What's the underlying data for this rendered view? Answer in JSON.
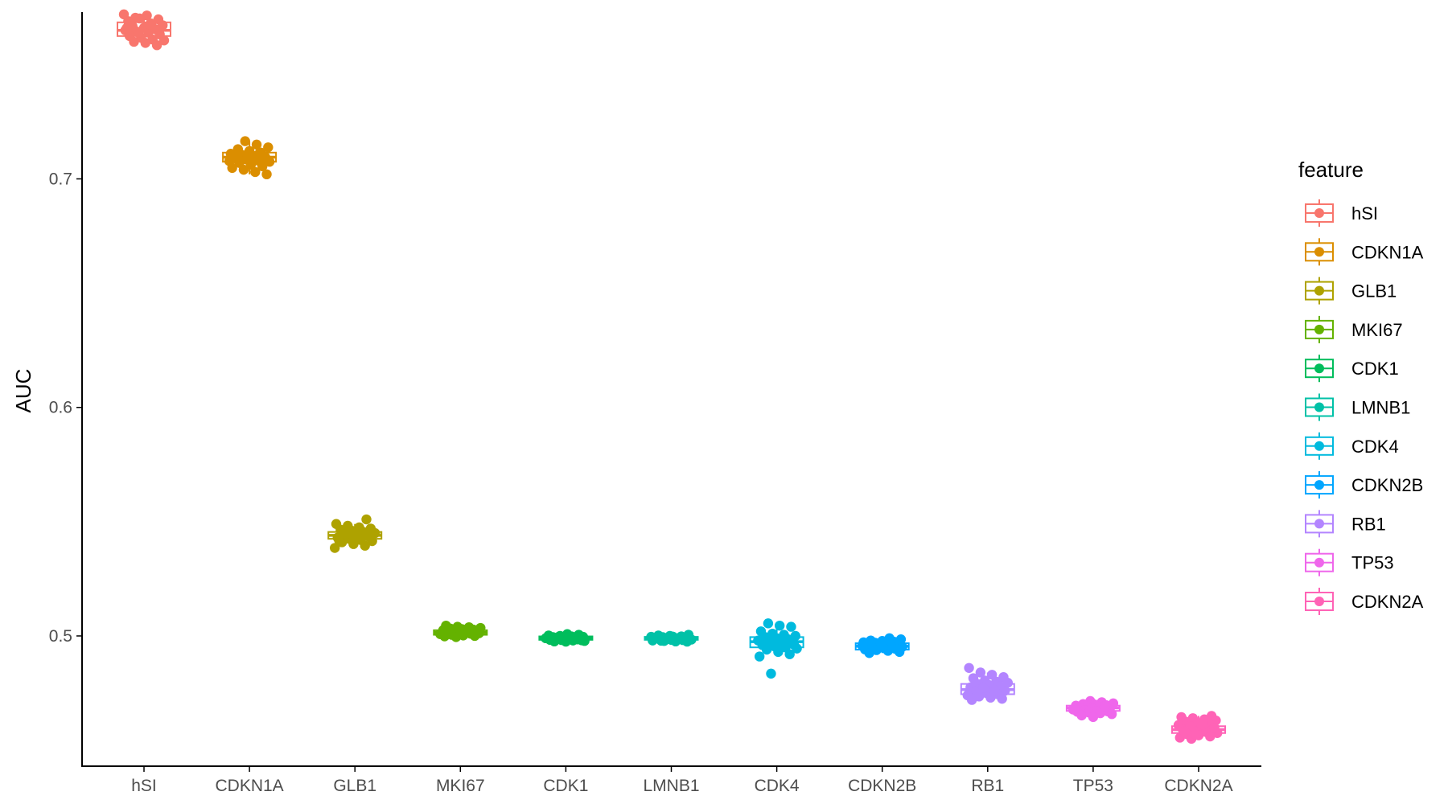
{
  "chart_data": {
    "type": "box",
    "ylabel": "AUC",
    "xlabel": "",
    "ylim": [
      0.443,
      0.773
    ],
    "yticks": [
      "0.5",
      "0.6",
      "0.7"
    ],
    "grid": false,
    "legend": {
      "title": "feature",
      "position": "right"
    },
    "categories": [
      "hSI",
      "CDKN1A",
      "GLB1",
      "MKI67",
      "CDK1",
      "LMNB1",
      "CDK4",
      "CDKN2B",
      "RB1",
      "TP53",
      "CDKN2A"
    ],
    "series": [
      {
        "name": "hSI",
        "color": "#F8766D",
        "median": 0.765,
        "q1": 0.7625,
        "q3": 0.7685,
        "points": [
          0.772,
          0.7705,
          0.7715,
          0.7698,
          0.769,
          0.7702,
          0.768,
          0.7672,
          0.7668,
          0.7661,
          0.7655,
          0.765,
          0.7645,
          0.764,
          0.7632,
          0.7625,
          0.7618,
          0.761,
          0.7606,
          0.76,
          0.7595,
          0.7585,
          0.766,
          0.764,
          0.7675
        ]
      },
      {
        "name": "CDKN1A",
        "color": "#DB8E00",
        "median": 0.7095,
        "q1": 0.7075,
        "q3": 0.7115,
        "points": [
          0.7165,
          0.715,
          0.7138,
          0.713,
          0.7122,
          0.7115,
          0.711,
          0.7105,
          0.71,
          0.7096,
          0.709,
          0.7085,
          0.708,
          0.7075,
          0.707,
          0.7062,
          0.7055,
          0.7048,
          0.704,
          0.703,
          0.702,
          0.71,
          0.7088,
          0.7112,
          0.7078
        ]
      },
      {
        "name": "GLB1",
        "color": "#AEA200",
        "median": 0.544,
        "q1": 0.5425,
        "q3": 0.5455,
        "points": [
          0.551,
          0.549,
          0.5482,
          0.5475,
          0.547,
          0.5465,
          0.546,
          0.5455,
          0.545,
          0.5445,
          0.544,
          0.5436,
          0.543,
          0.5425,
          0.542,
          0.5415,
          0.541,
          0.5402,
          0.5395,
          0.5385,
          0.5445,
          0.5432,
          0.5458,
          0.5418,
          0.5448
        ]
      },
      {
        "name": "MKI67",
        "color": "#64B200",
        "median": 0.5015,
        "q1": 0.5005,
        "q3": 0.5025,
        "points": [
          0.5045,
          0.504,
          0.5038,
          0.5035,
          0.5032,
          0.503,
          0.5028,
          0.5025,
          0.5022,
          0.502,
          0.5018,
          0.5015,
          0.5012,
          0.501,
          0.5008,
          0.5005,
          0.5002,
          0.5,
          0.4998,
          0.4995,
          0.502,
          0.5012,
          0.503,
          0.5006,
          0.5016
        ]
      },
      {
        "name": "CDK1",
        "color": "#00BD5C",
        "median": 0.499,
        "q1": 0.4983,
        "q3": 0.4998,
        "points": [
          0.5008,
          0.5005,
          0.5002,
          0.5,
          0.4998,
          0.4996,
          0.4995,
          0.4993,
          0.4992,
          0.499,
          0.4988,
          0.4987,
          0.4985,
          0.4983,
          0.4982,
          0.498,
          0.4978,
          0.4976,
          0.4975,
          0.4985,
          0.4992,
          0.4996,
          0.4989,
          0.4981,
          0.4994
        ]
      },
      {
        "name": "LMNB1",
        "color": "#00C1A7",
        "median": 0.499,
        "q1": 0.4983,
        "q3": 0.4996,
        "points": [
          0.5005,
          0.5002,
          0.5,
          0.4998,
          0.4996,
          0.4995,
          0.4993,
          0.4992,
          0.499,
          0.4989,
          0.4988,
          0.4986,
          0.4985,
          0.4983,
          0.4982,
          0.498,
          0.4978,
          0.4976,
          0.4975,
          0.4994,
          0.4987,
          0.4991,
          0.4984,
          0.4979,
          0.4997
        ]
      },
      {
        "name": "CDK4",
        "color": "#00BADE",
        "median": 0.4975,
        "q1": 0.495,
        "q3": 0.4995,
        "points": [
          0.5055,
          0.5045,
          0.504,
          0.502,
          0.501,
          0.5005,
          0.5,
          0.4995,
          0.499,
          0.4985,
          0.498,
          0.4975,
          0.497,
          0.4965,
          0.496,
          0.4955,
          0.495,
          0.4945,
          0.494,
          0.493,
          0.492,
          0.491,
          0.4835,
          0.4985,
          0.4962
        ]
      },
      {
        "name": "CDKN2B",
        "color": "#00A6FF",
        "median": 0.4955,
        "q1": 0.494,
        "q3": 0.4968,
        "points": [
          0.499,
          0.4985,
          0.498,
          0.4978,
          0.4975,
          0.4972,
          0.497,
          0.4966,
          0.4963,
          0.496,
          0.4957,
          0.4955,
          0.4952,
          0.495,
          0.4947,
          0.4944,
          0.4941,
          0.4938,
          0.4935,
          0.493,
          0.4925,
          0.4962,
          0.4948,
          0.4958,
          0.4942
        ]
      },
      {
        "name": "RB1",
        "color": "#B385FF",
        "median": 0.4765,
        "q1": 0.4745,
        "q3": 0.479,
        "points": [
          0.486,
          0.484,
          0.483,
          0.482,
          0.4815,
          0.4805,
          0.48,
          0.4795,
          0.479,
          0.4785,
          0.478,
          0.4775,
          0.477,
          0.4765,
          0.476,
          0.4755,
          0.475,
          0.4745,
          0.474,
          0.4735,
          0.473,
          0.4725,
          0.472,
          0.4772,
          0.4758
        ]
      },
      {
        "name": "TP53",
        "color": "#EF67EB",
        "median": 0.4685,
        "q1": 0.4672,
        "q3": 0.4695,
        "points": [
          0.4715,
          0.471,
          0.4705,
          0.4702,
          0.47,
          0.4697,
          0.4695,
          0.4692,
          0.469,
          0.4688,
          0.4685,
          0.4683,
          0.468,
          0.4678,
          0.4675,
          0.4672,
          0.467,
          0.4668,
          0.4665,
          0.4662,
          0.4658,
          0.4652,
          0.4645,
          0.469,
          0.468
        ]
      },
      {
        "name": "CDKN2A",
        "color": "#FF63B6",
        "median": 0.459,
        "q1": 0.4575,
        "q3": 0.4605,
        "points": [
          0.465,
          0.4645,
          0.464,
          0.4635,
          0.463,
          0.4625,
          0.462,
          0.4615,
          0.461,
          0.4605,
          0.46,
          0.4595,
          0.459,
          0.4585,
          0.458,
          0.4575,
          0.457,
          0.4565,
          0.456,
          0.4555,
          0.455,
          0.4612,
          0.4598,
          0.4582,
          0.4568
        ]
      }
    ]
  }
}
